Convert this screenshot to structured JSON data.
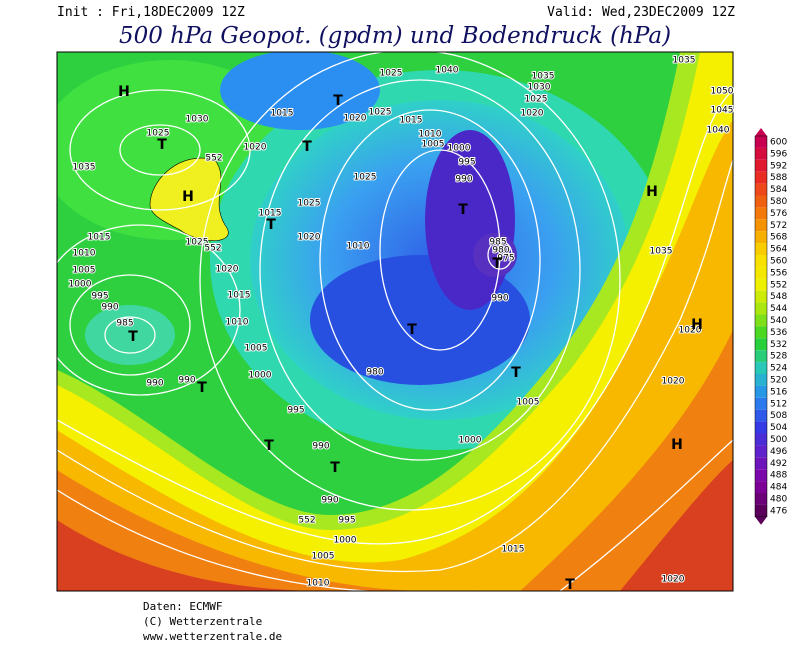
{
  "header": {
    "init": "Init : Fri,18DEC2009 12Z",
    "valid": "Valid: Wed,23DEC2009 12Z",
    "title": "500 hPa Geopot. (gpdm) und Bodendruck (hPa)"
  },
  "legend": {
    "labels": [
      "600",
      "596",
      "592",
      "588",
      "584",
      "580",
      "576",
      "572",
      "568",
      "564",
      "560",
      "556",
      "552",
      "548",
      "544",
      "540",
      "536",
      "532",
      "528",
      "524",
      "520",
      "516",
      "512",
      "508",
      "504",
      "500",
      "496",
      "492",
      "488",
      "484",
      "480",
      "476"
    ]
  },
  "map": {
    "labels": [
      "H",
      "1025",
      "T",
      "1030",
      "1035",
      "552",
      "H",
      "1025",
      "552",
      "1015",
      "1010",
      "1005",
      "1000",
      "995",
      "990",
      "985",
      "T",
      "990",
      "990",
      "T",
      "1020",
      "1015",
      "1010",
      "1005",
      "1000",
      "995",
      "990",
      "T",
      "T",
      "990",
      "552",
      "995",
      "1000",
      "1005",
      "1010",
      "1015",
      "T",
      "1020",
      "H",
      "1020",
      "1020",
      "H",
      "1035",
      "H",
      "1040",
      "1045",
      "1050",
      "1035",
      "1035",
      "1030",
      "1025",
      "1020",
      "1040",
      "1025",
      "1025",
      "1020",
      "1015",
      "1010",
      "1005",
      "1000",
      "995",
      "990",
      "T",
      "985",
      "980",
      "975",
      "T",
      "990",
      "T",
      "980",
      "T",
      "1005",
      "1000",
      "T",
      "1015",
      "1020",
      "T",
      "1025",
      "1025",
      "1015",
      "T",
      "1020",
      "1010"
    ]
  },
  "footer": {
    "lines": [
      "Daten: ECMWF",
      "(C) Wetterzentrale",
      "www.wetterzentrale.de"
    ]
  }
}
